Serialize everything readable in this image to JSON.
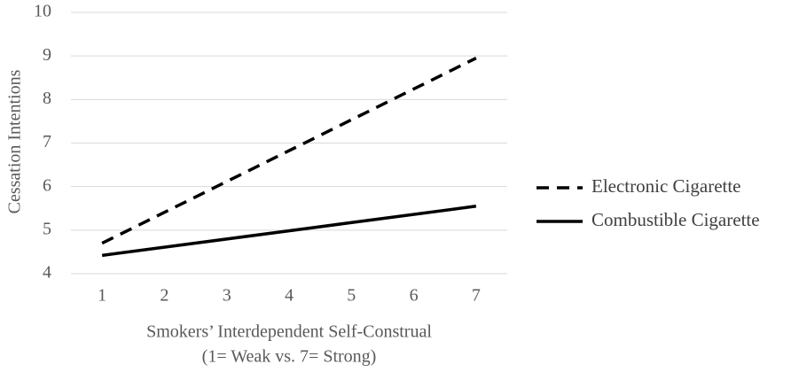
{
  "chart_data": {
    "type": "line",
    "y_label": "Cessation Intentions",
    "x_label": [
      "Smokers’ Interdependent Self-Construal",
      "(1= Weak vs. 7= Strong)"
    ],
    "x": [
      1,
      7
    ],
    "xlim": [
      0.5,
      7.5
    ],
    "xticks": [
      1,
      2,
      3,
      4,
      5,
      6,
      7
    ],
    "ylim": [
      4,
      10
    ],
    "yticks": [
      4,
      5,
      6,
      7,
      8,
      9,
      10
    ],
    "grid": true,
    "legend": "right",
    "series": [
      {
        "name": "Electronic Cigarette",
        "color": "#000000",
        "dash": true,
        "values": [
          4.7,
          8.95
        ]
      },
      {
        "name": "Combustible Cigarette",
        "color": "#000000",
        "dash": false,
        "values": [
          4.42,
          5.55
        ]
      }
    ]
  }
}
